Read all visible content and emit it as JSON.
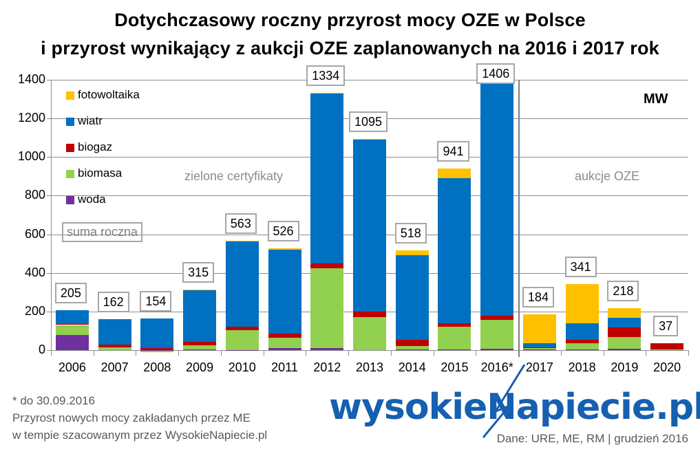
{
  "title": {
    "line1": "Dotychczasowy roczny przyrost mocy OZE w Polsce",
    "line2": "i przyrost wynikający z aukcji OZE zaplanowanych na 2016 i 2017 rok"
  },
  "unit_label": "MW",
  "zones": {
    "left": "zielone certyfikaty",
    "right": "aukcje OZE"
  },
  "legend": {
    "items": [
      {
        "label": "fotowoltaika",
        "color": "#FFC000"
      },
      {
        "label": "wiatr",
        "color": "#0070C0"
      },
      {
        "label": "biogaz",
        "color": "#C00000"
      },
      {
        "label": "biomasa",
        "color": "#92D050"
      },
      {
        "label": "woda",
        "color": "#7030A0"
      }
    ],
    "total_label": "suma roczna"
  },
  "footer": {
    "note1": "* do 30.09.2016",
    "note2": "Przyrost  nowych mocy zakładanych przez ME",
    "note3": "w tempie szacowanym przez WysokieNapiecie.pl",
    "brand": "wysokieNapiecie.pl",
    "source": "Dane: URE, ME, RM  |  grudzień 2016"
  },
  "chart_data": {
    "type": "bar",
    "stacked": true,
    "title": "Dotychczasowy roczny przyrost mocy OZE w Polsce i przyrost wynikający z aukcji OZE zaplanowanych na 2016 i 2017 rok",
    "xlabel": "",
    "ylabel": "MW",
    "ylim": [
      0,
      1400
    ],
    "yticks": [
      0,
      200,
      400,
      600,
      800,
      1000,
      1200,
      1400
    ],
    "grid": true,
    "legend_position": "top-left inside",
    "categories": [
      "2006",
      "2007",
      "2008",
      "2009",
      "2010",
      "2011",
      "2012",
      "2013",
      "2014",
      "2015",
      "2016*",
      "2017",
      "2018",
      "2019",
      "2020"
    ],
    "series": [
      {
        "name": "woda",
        "color": "#7030A0",
        "values": [
          80,
          0,
          -3,
          5,
          -5,
          10,
          10,
          0,
          3,
          5,
          8,
          2,
          5,
          8,
          0
        ]
      },
      {
        "name": "biomasa",
        "color": "#92D050",
        "values": [
          50,
          15,
          -7,
          20,
          105,
          55,
          415,
          170,
          20,
          115,
          150,
          10,
          30,
          60,
          5
        ]
      },
      {
        "name": "biogaz",
        "color": "#C00000",
        "values": [
          5,
          12,
          10,
          18,
          15,
          20,
          25,
          30,
          30,
          20,
          20,
          3,
          20,
          50,
          32
        ]
      },
      {
        "name": "wiatr",
        "color": "#0070C0",
        "values": [
          70,
          135,
          154,
          270,
          445,
          435,
          880,
          890,
          440,
          750,
          1200,
          20,
          85,
          50,
          0
        ]
      },
      {
        "name": "fotowoltaika",
        "color": "#FFC000",
        "values": [
          0,
          0,
          0,
          2,
          3,
          6,
          4,
          5,
          25,
          51,
          28,
          149,
          201,
          50,
          0
        ]
      }
    ],
    "totals": [
      205,
      162,
      154,
      315,
      563,
      526,
      1334,
      1095,
      518,
      941,
      1406,
      184,
      341,
      218,
      37
    ],
    "annotations": [
      "zielone certyfikaty",
      "aukcje OZE",
      "MW",
      "suma roczna"
    ],
    "divider_after_category": "2016*"
  }
}
